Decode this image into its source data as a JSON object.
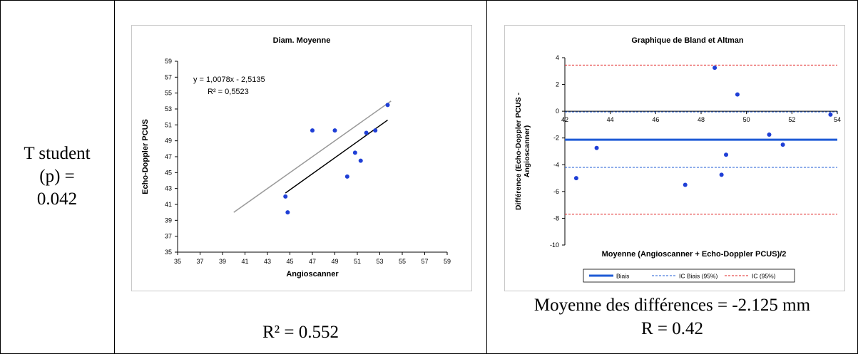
{
  "table": {
    "left_cell": {
      "lines": [
        "T student",
        "(p) =",
        "0.042"
      ]
    },
    "middle_caption": "R² = 0.552",
    "right_caption_line1": "Moyenne des différences = -2.125 mm",
    "right_caption_line2": "R = 0.42"
  },
  "chart_data": [
    {
      "type": "scatter",
      "title": "Diam. Moyenne",
      "xlabel": "Angioscanner",
      "ylabel": "Echo-Doppler PCUS",
      "xlim": [
        35,
        59
      ],
      "ylim": [
        35,
        59
      ],
      "xticks": [
        "35",
        "37",
        "39",
        "41",
        "43",
        "45",
        "47",
        "49",
        "51",
        "53",
        "55",
        "57",
        "59"
      ],
      "yticks": [
        "35",
        "37",
        "39",
        "41",
        "43",
        "45",
        "47",
        "49",
        "51",
        "53",
        "55",
        "57",
        "59"
      ],
      "equation": "y = 1,0078x - 2,5135",
      "r2_label": "R² = 0,5523",
      "points": [
        {
          "x": 44.6,
          "y": 42.0
        },
        {
          "x": 44.8,
          "y": 40.0
        },
        {
          "x": 47.0,
          "y": 50.3
        },
        {
          "x": 49.0,
          "y": 50.3
        },
        {
          "x": 50.1,
          "y": 44.5
        },
        {
          "x": 50.8,
          "y": 47.5
        },
        {
          "x": 51.3,
          "y": 46.5
        },
        {
          "x": 51.8,
          "y": 50.0
        },
        {
          "x": 52.6,
          "y": 50.3
        },
        {
          "x": 53.7,
          "y": 53.5
        }
      ],
      "trendline": {
        "slope": 1.0078,
        "intercept": -2.5135,
        "x_range": [
          44.6,
          53.7
        ],
        "color": "#000000"
      },
      "identity_line": {
        "x_range": [
          40,
          54
        ],
        "color": "#999999"
      },
      "point_color": "#1f3fd6",
      "grid": false
    },
    {
      "type": "scatter",
      "title": "Graphique de Bland et Altman",
      "xlabel": "Moyenne (Angioscanner + Echo-Doppler PCUS)/2",
      "ylabel_line1": "Différence (Echo-Doppler PCUS -",
      "ylabel_line2": "Angioscanner)",
      "xlim": [
        42,
        54
      ],
      "ylim": [
        -10,
        4
      ],
      "xticks": [
        "42",
        "44",
        "46",
        "48",
        "50",
        "52",
        "54"
      ],
      "yticks": [
        "4",
        "2",
        "0",
        "-2",
        "-4",
        "-6",
        "-8",
        "-10"
      ],
      "points": [
        {
          "x": 42.5,
          "y": -5.0
        },
        {
          "x": 43.4,
          "y": -2.75
        },
        {
          "x": 47.3,
          "y": -5.5
        },
        {
          "x": 48.6,
          "y": 3.25
        },
        {
          "x": 48.9,
          "y": -4.75
        },
        {
          "x": 49.1,
          "y": -3.25
        },
        {
          "x": 49.6,
          "y": 1.25
        },
        {
          "x": 51.0,
          "y": -1.75
        },
        {
          "x": 51.6,
          "y": -2.5
        },
        {
          "x": 53.7,
          "y": -0.25
        }
      ],
      "bias": -2.125,
      "bias_ci": [
        -4.2,
        -0.05
      ],
      "agreement_limits": [
        -7.7,
        3.45
      ],
      "point_color": "#1f3fd6",
      "bias_color": "#1f5bd6",
      "ci_bias_color": "#1f5bd6",
      "ci_color": "#e02020",
      "legend": {
        "position": "bottom",
        "items": [
          "Biais",
          "IC Biais (95%)",
          "IC (95%)"
        ]
      },
      "grid": false
    }
  ]
}
